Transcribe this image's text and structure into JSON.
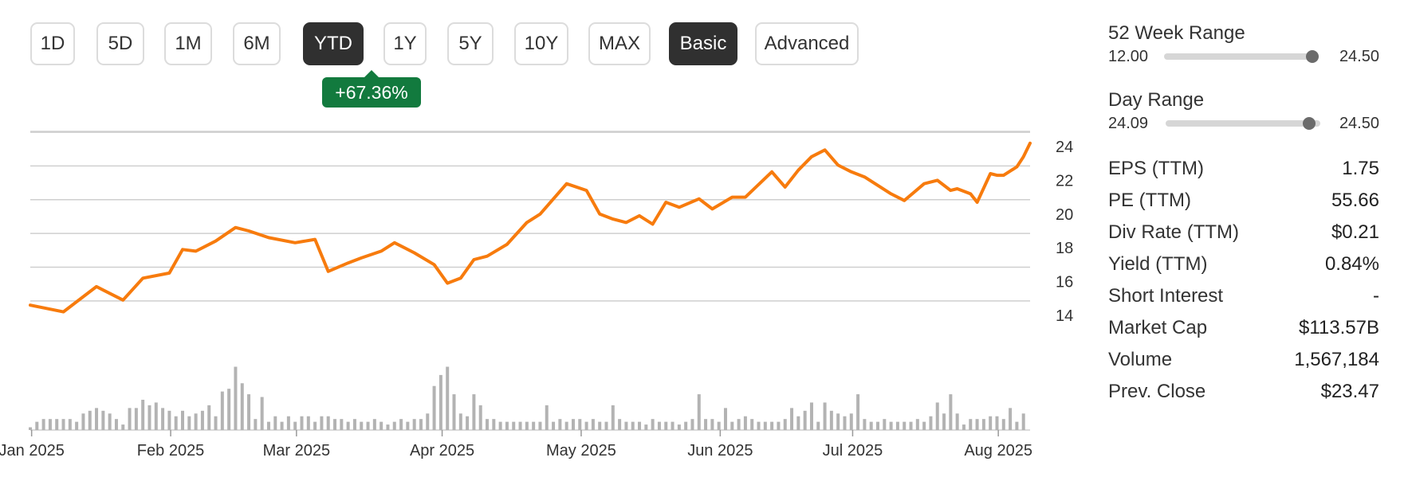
{
  "range_buttons": [
    {
      "label": "1D",
      "active": false
    },
    {
      "label": "5D",
      "active": false
    },
    {
      "label": "1M",
      "active": false
    },
    {
      "label": "6M",
      "active": false
    },
    {
      "label": "YTD",
      "active": true
    },
    {
      "label": "1Y",
      "active": false
    },
    {
      "label": "5Y",
      "active": false
    },
    {
      "label": "10Y",
      "active": false
    },
    {
      "label": "MAX",
      "active": false
    }
  ],
  "mode_buttons": [
    {
      "label": "Basic",
      "active": true
    },
    {
      "label": "Advanced",
      "active": false
    }
  ],
  "change_badge": "+67.36%",
  "colors": {
    "line": "#f77b0d",
    "volume": "#b3b3b3",
    "badge": "#127a3e",
    "grid": "#cfcfcf"
  },
  "ranges": {
    "week52": {
      "label": "52 Week Range",
      "low": "12.00",
      "high": "24.50",
      "position": 0.98
    },
    "day": {
      "label": "Day Range",
      "low": "24.09",
      "high": "24.50",
      "position": 0.93
    }
  },
  "stats": [
    {
      "label": "EPS (TTM)",
      "value": "1.75"
    },
    {
      "label": "PE (TTM)",
      "value": "55.66"
    },
    {
      "label": "Div Rate (TTM)",
      "value": "$0.21"
    },
    {
      "label": "Yield (TTM)",
      "value": "0.84%"
    },
    {
      "label": "Short Interest",
      "value": "-"
    },
    {
      "label": "Market Cap",
      "value": "$113.57B"
    },
    {
      "label": "Volume",
      "value": "1,567,184"
    },
    {
      "label": "Prev. Close",
      "value": "$23.47"
    }
  ],
  "chart_data": {
    "type": "line",
    "ylim": [
      12.2,
      24.9
    ],
    "y_ticks": [
      14,
      16,
      18,
      20,
      22,
      24
    ],
    "y_tick_labels": [
      "14",
      "16",
      "18",
      "20",
      "22",
      "24"
    ],
    "x_ticks": [
      {
        "label": "Jan 2025",
        "t": 0.2
      },
      {
        "label": "Feb 2025",
        "t": 21.2
      },
      {
        "label": "Mar 2025",
        "t": 40.2
      },
      {
        "label": "Apr 2025",
        "t": 62.2
      },
      {
        "label": "May 2025",
        "t": 83.2
      },
      {
        "label": "Jun 2025",
        "t": 104.2
      },
      {
        "label": "Jul 2025",
        "t": 124.2
      },
      {
        "label": "Aug 2025",
        "t": 146.2
      }
    ],
    "x_range": [
      0,
      151
    ],
    "price_series": {
      "x": [
        0,
        5,
        10,
        14,
        17,
        21,
        23,
        25,
        28,
        31,
        33,
        36,
        40,
        43,
        45,
        48,
        50,
        53,
        55,
        58,
        61,
        63,
        65,
        67,
        69,
        72,
        75,
        77,
        81,
        84,
        86,
        88,
        90,
        92,
        94,
        96,
        98,
        101,
        103,
        106,
        108,
        112,
        114,
        116,
        118,
        120,
        122,
        124,
        126,
        130,
        132,
        135,
        137,
        139,
        140,
        142,
        143,
        145,
        146,
        147,
        149,
        150,
        151
      ],
      "y": [
        14.6,
        14.2,
        15.7,
        14.9,
        16.2,
        16.5,
        17.9,
        17.8,
        18.4,
        19.2,
        19.0,
        18.6,
        18.3,
        18.5,
        16.6,
        17.1,
        17.4,
        17.8,
        18.3,
        17.7,
        17.0,
        15.9,
        16.2,
        17.3,
        17.5,
        18.2,
        19.5,
        20.0,
        21.8,
        21.4,
        20.0,
        19.7,
        19.5,
        19.9,
        19.4,
        20.7,
        20.4,
        20.9,
        20.3,
        21.0,
        21.0,
        22.5,
        21.6,
        22.6,
        23.4,
        23.8,
        22.9,
        22.5,
        22.2,
        21.2,
        20.8,
        21.8,
        22.0,
        21.4,
        21.5,
        21.2,
        20.7,
        22.4,
        22.3,
        22.3,
        22.8,
        23.4,
        24.2
      ]
    },
    "volume_series": {
      "x": [
        0,
        1,
        2,
        3,
        4,
        5,
        6,
        7,
        8,
        9,
        10,
        11,
        12,
        13,
        14,
        15,
        16,
        17,
        18,
        19,
        20,
        21,
        22,
        23,
        24,
        25,
        26,
        27,
        28,
        29,
        30,
        31,
        32,
        33,
        34,
        35,
        36,
        37,
        38,
        39,
        40,
        41,
        42,
        43,
        44,
        45,
        46,
        47,
        48,
        49,
        50,
        51,
        52,
        53,
        54,
        55,
        56,
        57,
        58,
        59,
        60,
        61,
        62,
        63,
        64,
        65,
        66,
        67,
        68,
        69,
        70,
        71,
        72,
        73,
        74,
        75,
        76,
        77,
        78,
        79,
        80,
        81,
        82,
        83,
        84,
        85,
        86,
        87,
        88,
        89,
        90,
        91,
        92,
        93,
        94,
        95,
        96,
        97,
        98,
        99,
        100,
        101,
        102,
        103,
        104,
        105,
        106,
        107,
        108,
        109,
        110,
        111,
        112,
        113,
        114,
        115,
        116,
        117,
        118,
        119,
        120,
        121,
        122,
        123,
        124,
        125,
        126,
        127,
        128,
        129,
        130,
        131,
        132,
        133,
        134,
        135,
        136,
        137,
        138,
        139,
        140,
        141,
        142,
        143,
        144,
        145,
        146,
        147,
        148,
        149,
        150
      ],
      "y": [
        0.1,
        0.3,
        0.4,
        0.4,
        0.4,
        0.4,
        0.4,
        0.3,
        0.6,
        0.7,
        0.8,
        0.7,
        0.6,
        0.4,
        0.2,
        0.8,
        0.8,
        1.1,
        0.9,
        1.0,
        0.8,
        0.7,
        0.5,
        0.7,
        0.5,
        0.6,
        0.7,
        0.9,
        0.5,
        1.4,
        1.5,
        2.3,
        1.7,
        1.3,
        0.4,
        1.2,
        0.3,
        0.5,
        0.3,
        0.5,
        0.3,
        0.5,
        0.5,
        0.3,
        0.5,
        0.5,
        0.4,
        0.4,
        0.3,
        0.4,
        0.3,
        0.3,
        0.4,
        0.3,
        0.2,
        0.3,
        0.4,
        0.3,
        0.4,
        0.4,
        0.6,
        1.6,
        2.0,
        2.3,
        1.3,
        0.6,
        0.5,
        1.3,
        0.9,
        0.4,
        0.4,
        0.3,
        0.3,
        0.3,
        0.3,
        0.3,
        0.3,
        0.3,
        0.9,
        0.3,
        0.4,
        0.3,
        0.4,
        0.4,
        0.3,
        0.4,
        0.3,
        0.3,
        0.9,
        0.4,
        0.3,
        0.3,
        0.3,
        0.2,
        0.4,
        0.3,
        0.3,
        0.3,
        0.2,
        0.3,
        0.4,
        1.3,
        0.4,
        0.4,
        0.3,
        0.8,
        0.3,
        0.4,
        0.5,
        0.4,
        0.3,
        0.3,
        0.3,
        0.3,
        0.4,
        0.8,
        0.5,
        0.7,
        1.0,
        0.3,
        1.0,
        0.7,
        0.6,
        0.5,
        0.6,
        1.3,
        0.4,
        0.3,
        0.3,
        0.4,
        0.3,
        0.3,
        0.3,
        0.3,
        0.4,
        0.3,
        0.5,
        1.0,
        0.6,
        1.3,
        0.6,
        0.2,
        0.4,
        0.4,
        0.4,
        0.5,
        0.5,
        0.4,
        0.8,
        0.3,
        0.6
      ]
    }
  }
}
